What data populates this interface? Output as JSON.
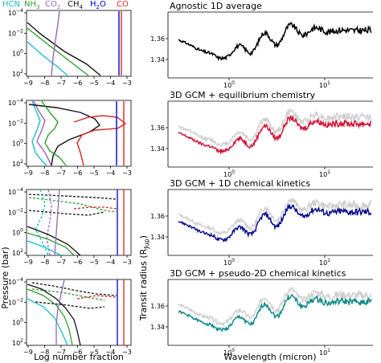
{
  "legend": [
    {
      "label": "HCN",
      "color": "#17becf"
    },
    {
      "label": "NH",
      "sub": "3",
      "color": "#2ca02c"
    },
    {
      "label": "CO",
      "sub": "2",
      "color": "#9467bd"
    },
    {
      "label": "CH",
      "sub": "4",
      "color": "#111111"
    },
    {
      "label": "H",
      "sub": "2",
      "tail": "O",
      "color": "#0000cc"
    },
    {
      "label": "CO",
      "color": "#d62728"
    }
  ],
  "left_xlabel": "Log number fraction",
  "left_ylabel": "Pressure (bar)",
  "right_xlabel": "Wavelength (micron)",
  "right_ylabel_main": "Transit radius (R",
  "right_ylabel_sub": "Jup",
  "right_ylabel_tail": ")",
  "left_xticks": [
    "−9",
    "−8",
    "−7",
    "−6",
    "−5",
    "−4",
    "−3"
  ],
  "left_yticks": [
    {
      "base": "10",
      "exp": "−4"
    },
    {
      "base": "10",
      "exp": "−2"
    },
    {
      "base": "10",
      "exp": "0"
    },
    {
      "base": "10",
      "exp": "2"
    }
  ],
  "right_yticks": [
    "1.36",
    "1.34"
  ],
  "right_xticks": [
    {
      "base": "10",
      "exp": "0"
    },
    {
      "base": "10",
      "exp": "1"
    }
  ],
  "panels": [
    {
      "title": "Agnostic 1D average",
      "color": "#000000",
      "reference": false
    },
    {
      "title": "3D GCM + equilibrium chemistry",
      "color": "#d0143c",
      "reference": true
    },
    {
      "title": "3D GCM + 1D chemical kinetics",
      "color": "#0a0a8c",
      "reference": true
    },
    {
      "title": "3D GCM + pseudo-2D chemical kinetics",
      "color": "#138a8a",
      "reference": true
    }
  ],
  "reference_color": "#cfcfcf"
}
